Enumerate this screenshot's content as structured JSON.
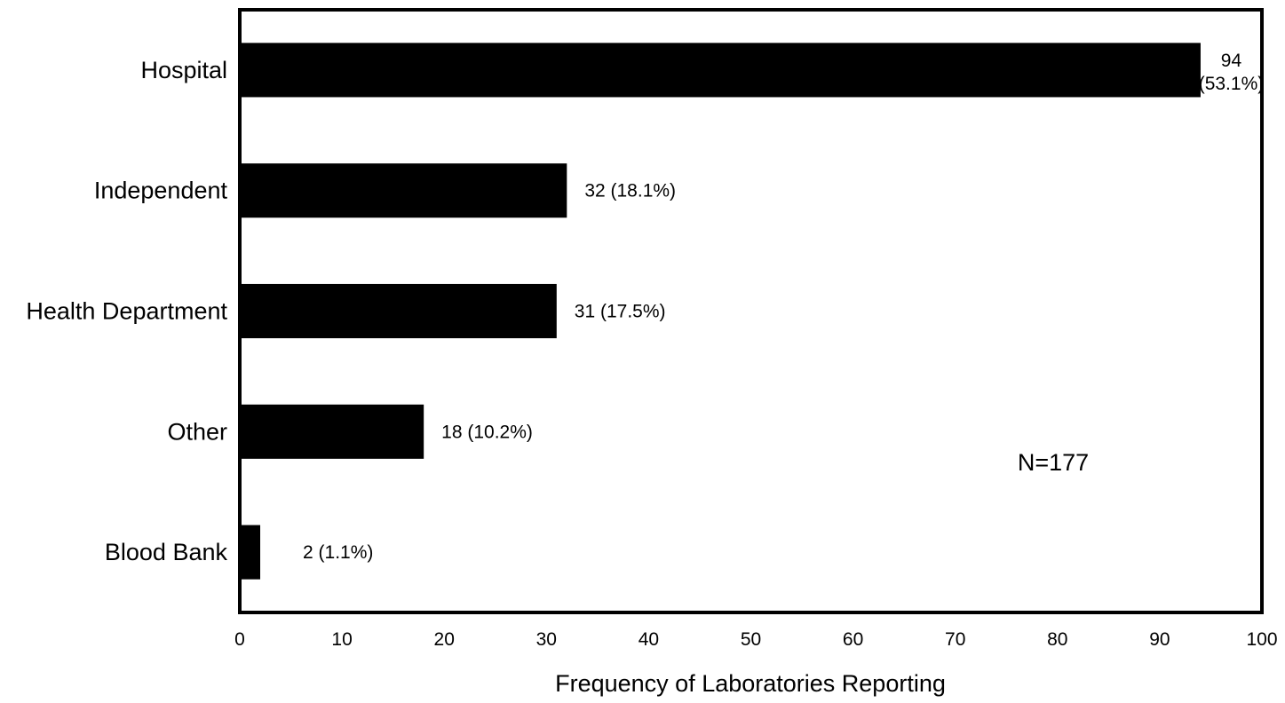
{
  "chart_data": {
    "type": "bar",
    "orientation": "horizontal",
    "categories": [
      "Hospital",
      "Independent",
      "Health Department",
      "Other",
      "Blood Bank"
    ],
    "values": [
      94,
      32,
      31,
      18,
      2
    ],
    "value_labels": [
      "94 (53.1%)",
      "32 (18.1%)",
      "31 (17.5%)",
      "18 (10.2%)",
      "2 (1.1%)"
    ],
    "xlabel": "Frequency of Laboratories Reporting",
    "ylabel": "",
    "xlim": [
      0,
      100
    ],
    "xticks": [
      0,
      10,
      20,
      30,
      40,
      50,
      60,
      70,
      80,
      90,
      100
    ],
    "annotation": "N=177",
    "grid": false,
    "legend": "none",
    "bar_color": "#000000"
  }
}
